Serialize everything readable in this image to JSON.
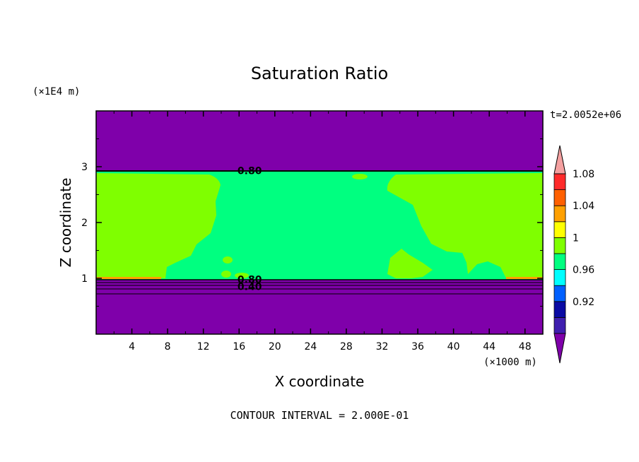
{
  "chart_data": {
    "type": "contour",
    "title": "Saturation Ratio",
    "xlabel": "X coordinate",
    "ylabel": "Z coordinate",
    "x_units": "(×1000 m)",
    "y_units": "(×1E4 m)",
    "time_label": "t=2.0052e+06",
    "footer": "CONTOUR INTERVAL = 2.000E-01",
    "xlim": [
      0,
      50
    ],
    "ylim": [
      0,
      4
    ],
    "x_ticks": [
      4,
      8,
      12,
      16,
      20,
      24,
      28,
      32,
      36,
      40,
      44,
      48
    ],
    "y_ticks": [
      1,
      2,
      3
    ],
    "contour_labels": [
      {
        "text": "0.80",
        "x": 17.5,
        "z": 2.92
      },
      {
        "text": "0.80",
        "x": 17.5,
        "z": 0.97
      },
      {
        "text": "0.40",
        "x": 17.5,
        "z": 0.84
      }
    ],
    "colorbar": {
      "levels": [
        0.92,
        0.96,
        1,
        1.04,
        1.08
      ],
      "colors": [
        "#7f00aa",
        "#3f1faf",
        "#0a0aa3",
        "#0060ff",
        "#00ffff",
        "#00ff80",
        "#7fff00",
        "#ffff00",
        "#ffa000",
        "#ff6000",
        "#ff2a2a",
        "#f4a0a0"
      ]
    },
    "regions": {
      "upper_band": {
        "zmin": 2.92,
        "zmax": 4,
        "color": "#7f00aa"
      },
      "lower_band": {
        "zmin": 0,
        "zmax": 0.98,
        "color": "#7f00aa"
      },
      "saturated_layer_color": "#7fff00",
      "near_saturated_color": "#00ff80"
    }
  }
}
